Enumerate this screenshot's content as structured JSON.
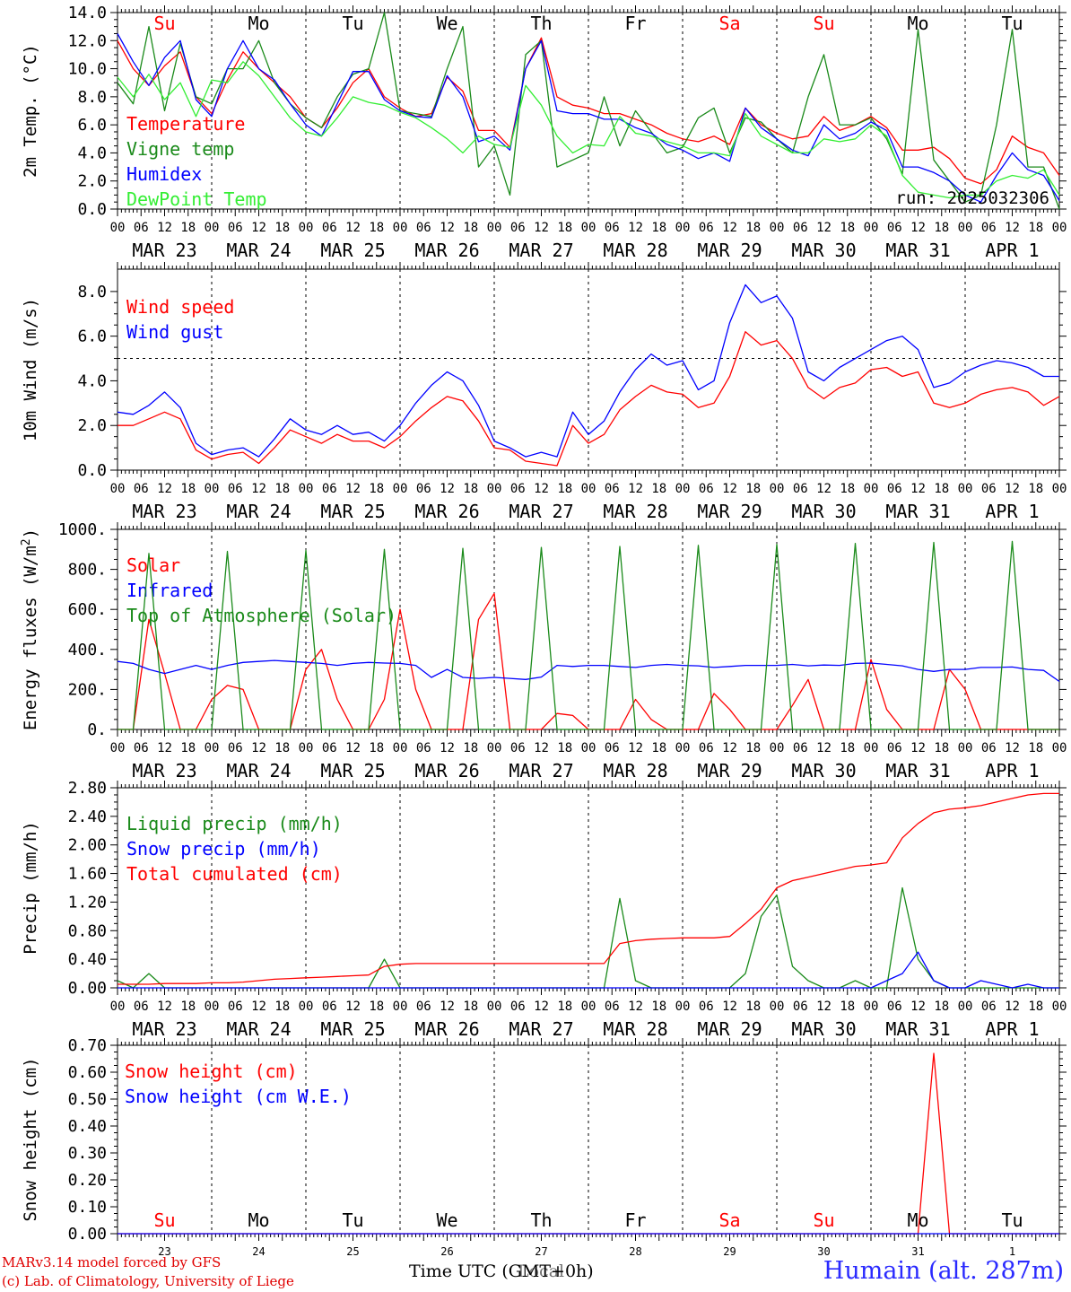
{
  "colors": {
    "red": "#ff0000",
    "green": "#1a8a1a",
    "blue": "#0000ff",
    "lime": "#33ee33",
    "black": "#000000"
  },
  "days": {
    "dates": [
      "MAR 23",
      "MAR 24",
      "MAR 25",
      "MAR 26",
      "MAR 27",
      "MAR 28",
      "MAR 29",
      "MAR 30",
      "MAR 31",
      "APR  1"
    ],
    "weekdays": [
      "Su",
      "Mo",
      "Tu",
      "We",
      "Th",
      "Fr",
      "Sa",
      "Su",
      "Mo",
      "Tu"
    ],
    "weekday_colors": [
      "#ff0000",
      "#000000",
      "#000000",
      "#000000",
      "#000000",
      "#000000",
      "#ff0000",
      "#ff0000",
      "#000000",
      "#000000"
    ],
    "day_numbers": [
      "23",
      "24",
      "25",
      "26",
      "27",
      "28",
      "29",
      "30",
      "31",
      "1"
    ],
    "hour_ticks": [
      "00",
      "06",
      "12",
      "18"
    ],
    "last_tick": "00"
  },
  "footer": {
    "model_line": "MARv3.14 model forced by GFS",
    "credit_line": "(c) Lab. of Climatology, University of Liege",
    "time_label": "Time UTC (GMT+0h)",
    "overlay_label": "Local",
    "station": "Humain (alt. 287m)"
  },
  "chart_data": [
    {
      "type": "line",
      "ylabel": "2m Temp. (°C)",
      "ylim": [
        0,
        14
      ],
      "yticks": [
        "0.0",
        "2.0",
        "4.0",
        "6.0",
        "8.0",
        "10.0",
        "12.0",
        "14.0"
      ],
      "hline": 0,
      "run_label": "run: 2025032306",
      "x_unit": "hours since 2025-03-23 00 UTC, 6-hourly",
      "series": [
        {
          "name": "Temperature",
          "color": "#ff0000",
          "values": [
            12.0,
            10.0,
            8.8,
            10.2,
            11.2,
            8.0,
            6.8,
            9.2,
            11.2,
            10.0,
            9.0,
            8.0,
            6.5,
            5.8,
            7.2,
            9.0,
            10.0,
            8.0,
            7.2,
            6.6,
            6.8,
            9.4,
            8.4,
            5.6,
            5.6,
            4.4,
            10.0,
            12.2,
            8.0,
            7.4,
            7.2,
            6.8,
            6.8,
            6.4,
            6.0,
            5.4,
            5.0,
            4.8,
            5.2,
            4.6,
            7.2,
            6.0,
            5.4,
            5.0,
            5.2,
            6.6,
            5.6,
            6.0,
            6.6,
            5.8,
            4.2,
            4.2,
            4.4,
            3.6,
            2.2,
            1.8,
            2.8,
            5.2,
            4.4,
            4.0,
            2.4
          ]
        },
        {
          "name": "Vigne temp",
          "color": "#1a8a1a",
          "values": [
            9.0,
            7.5,
            13.0,
            7.0,
            11.8,
            8.0,
            7.5,
            10.0,
            10.0,
            12.0,
            9.0,
            7.5,
            6.5,
            5.8,
            8.0,
            9.6,
            10.0,
            14.0,
            7.0,
            6.8,
            6.6,
            10.0,
            13.0,
            3.0,
            4.5,
            1.0,
            11.0,
            12.0,
            3.0,
            3.5,
            4.0,
            8.0,
            4.5,
            7.0,
            5.5,
            4.0,
            4.4,
            6.5,
            7.2,
            4.0,
            6.5,
            6.2,
            5.0,
            4.0,
            8.0,
            11.0,
            6.0,
            6.0,
            6.5,
            5.0,
            2.5,
            12.8,
            3.5,
            2.0,
            0.5,
            1.0,
            6.0,
            12.8,
            3.0,
            3.0,
            -0.5
          ]
        },
        {
          "name": "Humidex",
          "color": "#0000ff",
          "values": [
            12.5,
            10.5,
            8.8,
            10.8,
            12.0,
            7.8,
            6.6,
            10.0,
            12.0,
            10.0,
            9.2,
            7.5,
            6.0,
            5.2,
            7.5,
            9.8,
            9.8,
            7.8,
            7.0,
            6.6,
            6.5,
            9.5,
            8.0,
            4.8,
            5.2,
            4.2,
            10.0,
            12.0,
            7.0,
            6.8,
            6.8,
            6.4,
            6.4,
            5.8,
            5.4,
            4.6,
            4.2,
            3.6,
            4.0,
            3.4,
            7.2,
            5.8,
            5.0,
            4.2,
            3.8,
            6.0,
            5.0,
            5.4,
            6.2,
            5.6,
            3.0,
            3.0,
            2.6,
            2.0,
            1.0,
            0.5,
            2.4,
            4.0,
            2.8,
            2.4,
            0.6
          ]
        },
        {
          "name": "DewPoint Temp",
          "color": "#33ee33",
          "values": [
            9.4,
            8.0,
            9.6,
            7.8,
            9.0,
            6.6,
            9.2,
            9.0,
            10.5,
            9.5,
            8.0,
            6.5,
            5.5,
            5.2,
            6.5,
            8.0,
            7.6,
            7.4,
            6.9,
            6.5,
            5.8,
            5.0,
            4.0,
            5.2,
            4.6,
            4.4,
            8.8,
            7.4,
            5.2,
            4.0,
            4.6,
            4.5,
            6.6,
            5.4,
            5.2,
            4.8,
            4.5,
            4.0,
            4.0,
            3.8,
            6.8,
            5.2,
            4.6,
            4.0,
            4.0,
            5.0,
            4.8,
            5.0,
            6.0,
            5.2,
            2.4,
            1.2,
            1.0,
            0.8,
            1.0,
            1.0,
            2.0,
            2.4,
            2.2,
            2.8,
            1.0
          ]
        }
      ]
    },
    {
      "type": "line",
      "ylabel": "10m Wind (m/s)",
      "ylim": [
        0,
        9
      ],
      "yticks": [
        "0.0",
        "2.0",
        "4.0",
        "6.0",
        "8.0"
      ],
      "hline": 5,
      "x_unit": "hours since 2025-03-23 00 UTC, 6-hourly",
      "series": [
        {
          "name": "Wind speed",
          "color": "#ff0000",
          "values": [
            2.0,
            2.0,
            2.3,
            2.6,
            2.3,
            0.9,
            0.5,
            0.7,
            0.8,
            0.3,
            1.0,
            1.8,
            1.5,
            1.2,
            1.6,
            1.3,
            1.3,
            1.0,
            1.5,
            2.2,
            2.8,
            3.3,
            3.1,
            2.2,
            1.0,
            0.9,
            0.4,
            0.3,
            0.2,
            2.0,
            1.2,
            1.6,
            2.7,
            3.3,
            3.8,
            3.5,
            3.4,
            2.8,
            3.0,
            4.2,
            6.2,
            5.6,
            5.8,
            5.0,
            3.7,
            3.2,
            3.7,
            3.9,
            4.5,
            4.6,
            4.2,
            4.4,
            3.0,
            2.8,
            3.0,
            3.4,
            3.6,
            3.7,
            3.5,
            2.9,
            3.3
          ]
        },
        {
          "name": "Wind gust",
          "color": "#0000ff",
          "values": [
            2.6,
            2.5,
            2.9,
            3.5,
            2.8,
            1.2,
            0.7,
            0.9,
            1.0,
            0.6,
            1.4,
            2.3,
            1.8,
            1.6,
            2.0,
            1.6,
            1.7,
            1.3,
            2.0,
            3.0,
            3.8,
            4.4,
            4.0,
            2.9,
            1.3,
            1.0,
            0.6,
            0.8,
            0.6,
            2.6,
            1.6,
            2.2,
            3.5,
            4.5,
            5.2,
            4.7,
            4.9,
            3.6,
            4.0,
            6.6,
            8.3,
            7.5,
            7.8,
            6.8,
            4.4,
            4.0,
            4.6,
            5.0,
            5.4,
            5.8,
            6.0,
            5.4,
            3.7,
            3.9,
            4.4,
            4.7,
            4.9,
            4.8,
            4.6,
            4.2,
            4.2
          ]
        }
      ]
    },
    {
      "type": "line",
      "ylabel": "Energy fluxes (W/m²)",
      "ylim": [
        0,
        1000
      ],
      "yticks": [
        "0.",
        "200.",
        "400.",
        "600.",
        "800.",
        "1000."
      ],
      "x_unit": "hours since 2025-03-23 00 UTC, 6-hourly",
      "series": [
        {
          "name": "Solar",
          "color": "#ff0000",
          "values": [
            0,
            0,
            550,
            280,
            0,
            0,
            150,
            220,
            200,
            0,
            0,
            0,
            300,
            400,
            150,
            0,
            0,
            150,
            600,
            200,
            0,
            0,
            0,
            550,
            680,
            0,
            0,
            0,
            80,
            70,
            0,
            0,
            0,
            150,
            50,
            0,
            0,
            0,
            180,
            100,
            0,
            0,
            0,
            120,
            250,
            0,
            0,
            0,
            350,
            100,
            0,
            0,
            0,
            300,
            200,
            0,
            0,
            0,
            0,
            0,
            0
          ]
        },
        {
          "name": "Infrared",
          "color": "#0000ff",
          "values": [
            340,
            330,
            300,
            280,
            300,
            320,
            300,
            320,
            335,
            340,
            345,
            340,
            335,
            330,
            320,
            330,
            335,
            332,
            330,
            320,
            260,
            300,
            260,
            255,
            260,
            255,
            250,
            262,
            320,
            315,
            320,
            320,
            315,
            310,
            320,
            325,
            320,
            318,
            310,
            315,
            320,
            320,
            320,
            325,
            318,
            322,
            320,
            330,
            332,
            325,
            318,
            300,
            290,
            300,
            300,
            310,
            310,
            312,
            300,
            295,
            240
          ]
        },
        {
          "name": "Top of Atmosphere (Solar)",
          "color": "#1a8a1a",
          "values": [
            0,
            0,
            880,
            0,
            0,
            0,
            0,
            890,
            0,
            0,
            0,
            0,
            895,
            0,
            0,
            0,
            0,
            900,
            0,
            0,
            0,
            0,
            905,
            0,
            0,
            0,
            0,
            910,
            0,
            0,
            0,
            0,
            915,
            0,
            0,
            0,
            0,
            920,
            0,
            0,
            0,
            0,
            925,
            0,
            0,
            0,
            0,
            930,
            0,
            0,
            0,
            0,
            935,
            0,
            0,
            0,
            0,
            940,
            0,
            0,
            0
          ]
        }
      ]
    },
    {
      "type": "line",
      "ylabel": "Precip (mm/h)",
      "ylim": [
        0,
        2.8
      ],
      "yticks": [
        "0.00",
        "0.40",
        "0.80",
        "1.20",
        "1.60",
        "2.00",
        "2.40",
        "2.80"
      ],
      "x_unit": "hours since 2025-03-23 00 UTC, 6-hourly",
      "series": [
        {
          "name": "Liquid precip (mm/h)",
          "color": "#1a8a1a",
          "values": [
            0.1,
            0.0,
            0.2,
            0.0,
            0.0,
            0.0,
            0.0,
            0.0,
            0.0,
            0.0,
            0.0,
            0.0,
            0.0,
            0.0,
            0.0,
            0.0,
            0.0,
            0.4,
            0.0,
            0.0,
            0.0,
            0.0,
            0.0,
            0.0,
            0.0,
            0.0,
            0.0,
            0.0,
            0.0,
            0.0,
            0.0,
            0.0,
            1.25,
            0.1,
            0.0,
            0.0,
            0.0,
            0.0,
            0.0,
            0.0,
            0.2,
            1.0,
            1.3,
            0.3,
            0.1,
            0.0,
            0.0,
            0.1,
            0.0,
            0.0,
            1.4,
            0.4,
            0.1,
            0.0,
            0.0,
            0.0,
            0.0,
            0.0,
            0.0,
            0.0,
            0.0
          ]
        },
        {
          "name": "Snow precip (mm/h)",
          "color": "#0000ff",
          "values": [
            0,
            0,
            0,
            0,
            0,
            0,
            0,
            0,
            0,
            0,
            0,
            0,
            0,
            0,
            0,
            0,
            0,
            0,
            0,
            0,
            0,
            0,
            0,
            0,
            0,
            0,
            0,
            0,
            0,
            0,
            0,
            0,
            0,
            0,
            0,
            0,
            0,
            0,
            0,
            0,
            0.0,
            0.0,
            0.0,
            0.0,
            0.0,
            0.0,
            0.0,
            0.0,
            0.0,
            0.1,
            0.2,
            0.5,
            0.1,
            0.0,
            0.0,
            0.1,
            0.05,
            0.0,
            0.05,
            0.0,
            0.0
          ]
        },
        {
          "name": "Total cumulated (cm)",
          "color": "#ff0000",
          "values": [
            0.05,
            0.05,
            0.05,
            0.06,
            0.06,
            0.06,
            0.07,
            0.07,
            0.08,
            0.1,
            0.12,
            0.13,
            0.14,
            0.15,
            0.16,
            0.17,
            0.18,
            0.3,
            0.33,
            0.34,
            0.34,
            0.34,
            0.34,
            0.34,
            0.34,
            0.34,
            0.34,
            0.34,
            0.34,
            0.34,
            0.34,
            0.34,
            0.62,
            0.66,
            0.68,
            0.69,
            0.7,
            0.7,
            0.7,
            0.72,
            0.9,
            1.1,
            1.4,
            1.5,
            1.55,
            1.6,
            1.65,
            1.7,
            1.72,
            1.75,
            2.1,
            2.3,
            2.45,
            2.5,
            2.52,
            2.55,
            2.6,
            2.65,
            2.7,
            2.72,
            2.72
          ]
        }
      ]
    },
    {
      "type": "line",
      "ylabel": "Snow height (cm)",
      "ylim": [
        0,
        0.7
      ],
      "yticks": [
        "0.00",
        "0.10",
        "0.20",
        "0.30",
        "0.40",
        "0.50",
        "0.60",
        "0.70"
      ],
      "x_unit": "hours since 2025-03-23 00 UTC, 6-hourly",
      "series": [
        {
          "name": "Snow height (cm)",
          "color": "#ff0000",
          "values": [
            0,
            0,
            0,
            0,
            0,
            0,
            0,
            0,
            0,
            0,
            0,
            0,
            0,
            0,
            0,
            0,
            0,
            0,
            0,
            0,
            0,
            0,
            0,
            0,
            0,
            0,
            0,
            0,
            0,
            0,
            0,
            0,
            0,
            0,
            0,
            0,
            0,
            0,
            0,
            0,
            0,
            0,
            0,
            0,
            0,
            0,
            0,
            0,
            0,
            0,
            0,
            0,
            0.67,
            0,
            0,
            0,
            0,
            0,
            0,
            0,
            0
          ]
        },
        {
          "name": "Snow height (cm W.E.)",
          "color": "#0000ff",
          "values": [
            0,
            0,
            0,
            0,
            0,
            0,
            0,
            0,
            0,
            0,
            0,
            0,
            0,
            0,
            0,
            0,
            0,
            0,
            0,
            0,
            0,
            0,
            0,
            0,
            0,
            0,
            0,
            0,
            0,
            0,
            0,
            0,
            0,
            0,
            0,
            0,
            0,
            0,
            0,
            0,
            0,
            0,
            0,
            0,
            0,
            0,
            0,
            0,
            0,
            0,
            0,
            0,
            0,
            0,
            0,
            0,
            0,
            0,
            0,
            0,
            0
          ]
        }
      ]
    }
  ]
}
